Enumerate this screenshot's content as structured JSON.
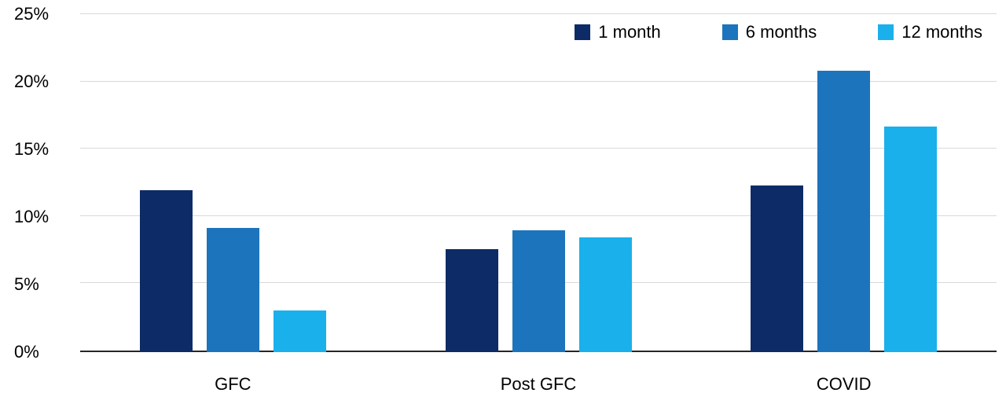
{
  "chart_data": {
    "type": "bar",
    "categories": [
      "GFC",
      "Post GFC",
      "COVID"
    ],
    "series": [
      {
        "name": "1 month",
        "color": "#0d2b66",
        "values": [
          12.0,
          7.6,
          12.3
        ]
      },
      {
        "name": "6 months",
        "color": "#1c74bc",
        "values": [
          9.2,
          9.0,
          20.8
        ]
      },
      {
        "name": "12 months",
        "color": "#1ab0ec",
        "values": [
          3.1,
          8.5,
          16.7
        ]
      }
    ],
    "title": "",
    "xlabel": "",
    "ylabel": "",
    "ylim": [
      0,
      25
    ],
    "ytick_step": 5,
    "ytick_labels": [
      "0%",
      "5%",
      "10%",
      "15%",
      "20%",
      "25%"
    ],
    "grid": true,
    "gridline_color": "#d9d9d9",
    "axis_color": "#262626",
    "legend_position": "top-right"
  }
}
